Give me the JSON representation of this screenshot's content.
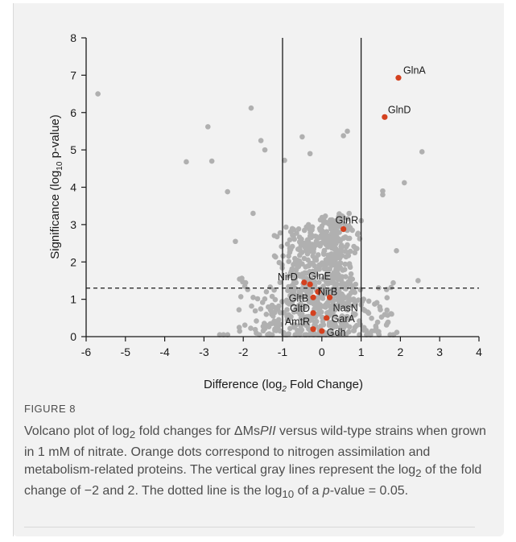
{
  "chart_data": {
    "type": "scatter",
    "xlabel": "Difference (log",
    "xlabel_sub": "2",
    "xlabel_end": " Fold Change)",
    "ylabel": "Significance (log",
    "ylabel_sub": "10",
    "ylabel_end": " p-value)",
    "xlim": [
      -6,
      4
    ],
    "ylim": [
      0,
      8
    ],
    "xticks": [
      -6,
      -5,
      -4,
      -3,
      -2,
      -1,
      0,
      1,
      2,
      3,
      4
    ],
    "yticks": [
      0,
      1,
      2,
      3,
      4,
      5,
      6,
      7,
      8
    ],
    "vlines": [
      -1,
      1
    ],
    "hline": 1.3,
    "colors": {
      "background_points": "#b0b0b0",
      "highlight_points": "#d4411f",
      "lines": "#1a1a1a"
    },
    "highlighted": [
      {
        "label": "GlnA",
        "x": 1.95,
        "y": 6.93
      },
      {
        "label": "GlnD",
        "x": 1.6,
        "y": 5.88
      },
      {
        "label": "GlnR",
        "x": 0.55,
        "y": 2.88
      },
      {
        "label": "NirD",
        "x": -0.45,
        "y": 1.45
      },
      {
        "label": "GlnE",
        "x": -0.3,
        "y": 1.4
      },
      {
        "label": "NirB",
        "x": -0.1,
        "y": 1.2
      },
      {
        "label": "GltB",
        "x": -0.22,
        "y": 1.05
      },
      {
        "label": "NasN",
        "x": 0.2,
        "y": 1.05
      },
      {
        "label": "GltD",
        "x": -0.22,
        "y": 0.63
      },
      {
        "label": "GarA",
        "x": 0.12,
        "y": 0.5
      },
      {
        "label": "AmtR",
        "x": -0.22,
        "y": 0.2
      },
      {
        "label": "Gdh",
        "x": 0.0,
        "y": 0.15
      }
    ],
    "outliers": [
      {
        "x": -5.7,
        "y": 6.5
      },
      {
        "x": -2.9,
        "y": 5.62
      },
      {
        "x": -3.45,
        "y": 4.68
      },
      {
        "x": -2.8,
        "y": 4.7
      },
      {
        "x": -1.8,
        "y": 6.12
      },
      {
        "x": -1.55,
        "y": 5.25
      },
      {
        "x": -1.45,
        "y": 5.0
      },
      {
        "x": -2.4,
        "y": 3.88
      },
      {
        "x": -0.95,
        "y": 4.72
      },
      {
        "x": -0.5,
        "y": 5.35
      },
      {
        "x": -0.3,
        "y": 4.9
      },
      {
        "x": 0.65,
        "y": 5.5
      },
      {
        "x": 0.55,
        "y": 5.38
      },
      {
        "x": 2.55,
        "y": 4.95
      },
      {
        "x": 2.1,
        "y": 4.12
      },
      {
        "x": -2.2,
        "y": 2.55
      },
      {
        "x": -1.75,
        "y": 3.3
      },
      {
        "x": 1.55,
        "y": 3.9
      },
      {
        "x": 1.55,
        "y": 3.8
      },
      {
        "x": 2.45,
        "y": 1.5
      },
      {
        "x": 1.9,
        "y": 2.3
      }
    ],
    "cloud_seed": 7
  },
  "figure": {
    "label": "FIGURE 8",
    "caption_parts": [
      "Volcano plot of log",
      "2",
      " fold changes for ΔMs",
      "PII",
      " versus wild-type strains when grown in 1 mM of nitrate. Orange dots correspond to nitrogen assimilation and metabolism-related proteins. The vertical gray lines represent the log",
      "2",
      " of the fold change of −2 and 2. The dotted line is the log",
      "10",
      " of a ",
      "p",
      "-value = 0.05."
    ]
  }
}
